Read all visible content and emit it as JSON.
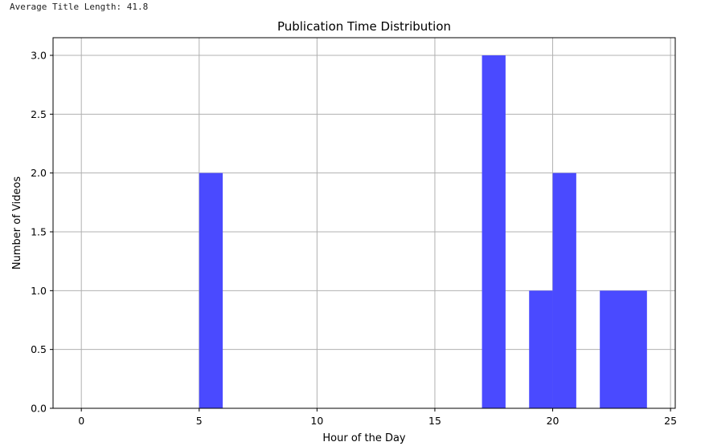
{
  "header": {
    "stat_text": "Average Title Length: 41.8"
  },
  "chart_data": {
    "type": "bar",
    "title": "Publication Time Distribution",
    "xlabel": "Hour of the Day",
    "ylabel": "Number of Videos",
    "bar_color": "#4a4aff",
    "grid": true,
    "xlim": [
      -1.2,
      25.2
    ],
    "ylim": [
      0,
      3.15
    ],
    "xticks": [
      0,
      5,
      10,
      15,
      20,
      25
    ],
    "yticks": [
      0.0,
      0.5,
      1.0,
      1.5,
      2.0,
      2.5,
      3.0
    ],
    "xtick_labels": [
      "0",
      "5",
      "10",
      "15",
      "20",
      "25"
    ],
    "ytick_labels": [
      "0.0",
      "0.5",
      "1.0",
      "1.5",
      "2.0",
      "2.5",
      "3.0"
    ],
    "bins": [
      {
        "x0": 5,
        "x1": 6,
        "count": 2
      },
      {
        "x0": 17,
        "x1": 18,
        "count": 3
      },
      {
        "x0": 19,
        "x1": 20,
        "count": 1
      },
      {
        "x0": 20,
        "x1": 21,
        "count": 2
      },
      {
        "x0": 22,
        "x1": 23,
        "count": 1
      },
      {
        "x0": 23,
        "x1": 24,
        "count": 1
      }
    ]
  }
}
